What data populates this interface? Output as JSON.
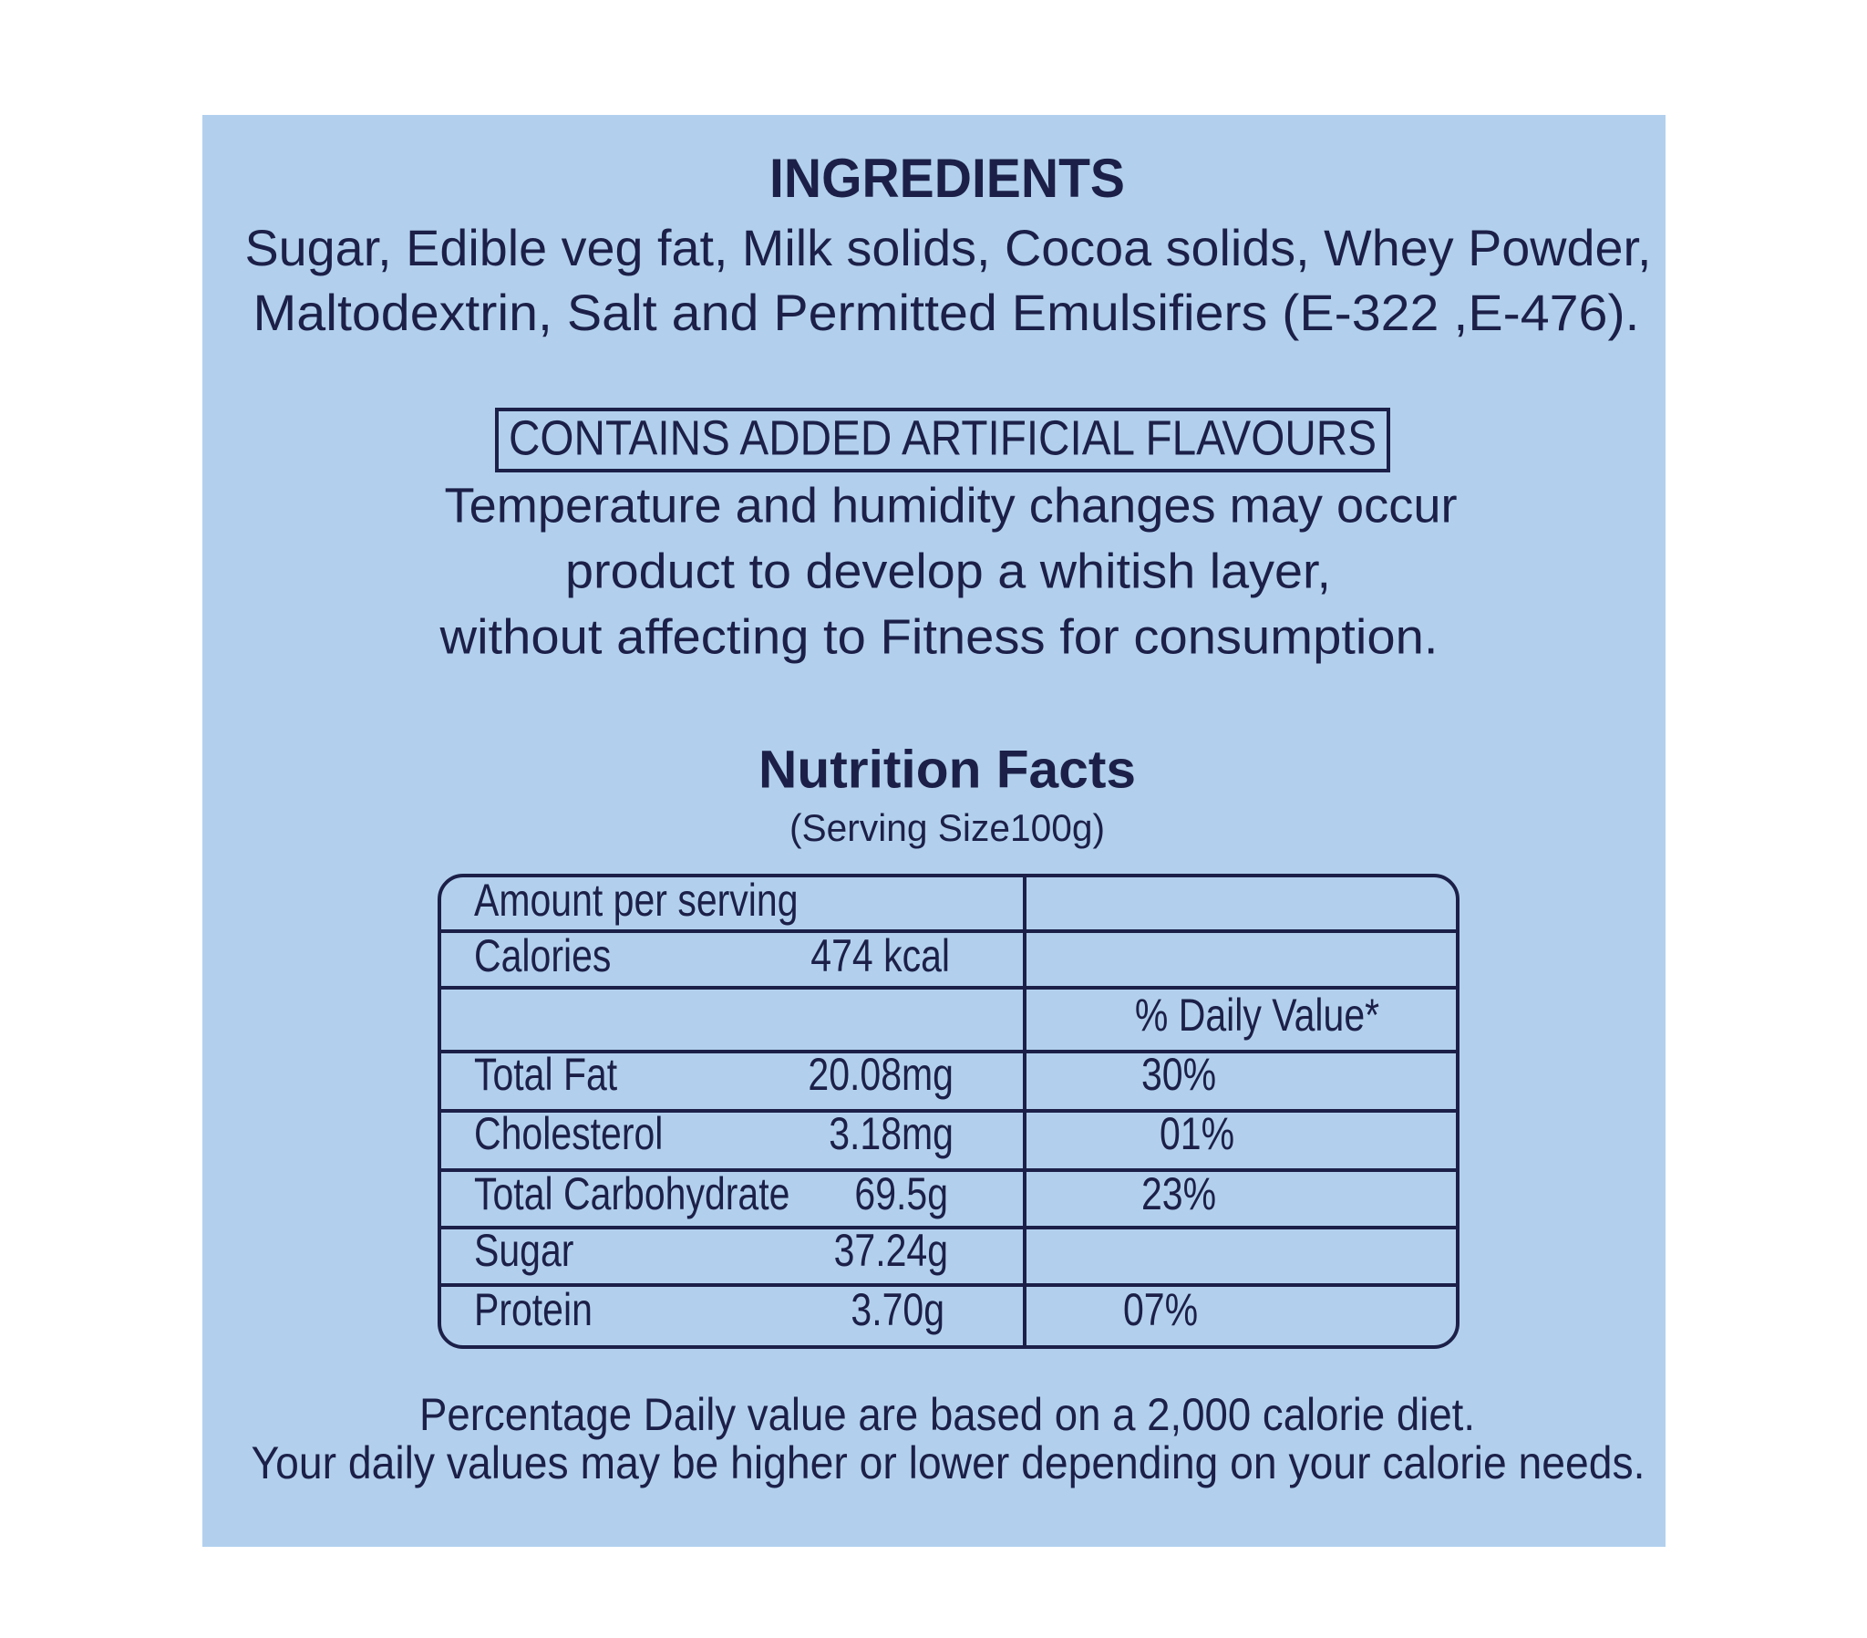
{
  "ingredients": {
    "title": "INGREDIENTS",
    "lines": [
      "Sugar, Edible veg fat, Milk solids, Cocoa solids,  Whey Powder,",
      "Maltodextrin, Salt and Permitted Emulsifiers (E-322 ,E-476)."
    ]
  },
  "warning": "CONTAINS ADDED ARTIFICIAL FLAVOURS",
  "notice": [
    "Temperature and humidity changes may occur",
    "product to  develop a whitish layer,",
    "without affecting to  Fitness for consumption."
  ],
  "nutrition": {
    "title": "Nutrition Facts",
    "serving": "(Serving Size100g)",
    "table": {
      "rows": [
        {
          "label": "Amount per serving"
        },
        {
          "label": "Calories",
          "amount": "474 kcal"
        },
        {
          "daily_value": "% Daily Value*"
        },
        {
          "label": "Total Fat",
          "amount": "20.08mg",
          "daily_value": "30%"
        },
        {
          "label": "Cholesterol",
          "amount": "3.18mg",
          "daily_value": "01%"
        },
        {
          "label": "Total Carbohydrate",
          "amount": "69.5g",
          "daily_value": "23%"
        },
        {
          "label": "Sugar",
          "amount": "37.24g"
        },
        {
          "label": "Protein",
          "amount": "3.70g",
          "daily_value": "07%"
        }
      ]
    },
    "footnote": [
      "Percentage Daily value are based on a 2,000 calorie diet.",
      "Your daily values may be higher or lower depending on your calorie needs."
    ]
  }
}
